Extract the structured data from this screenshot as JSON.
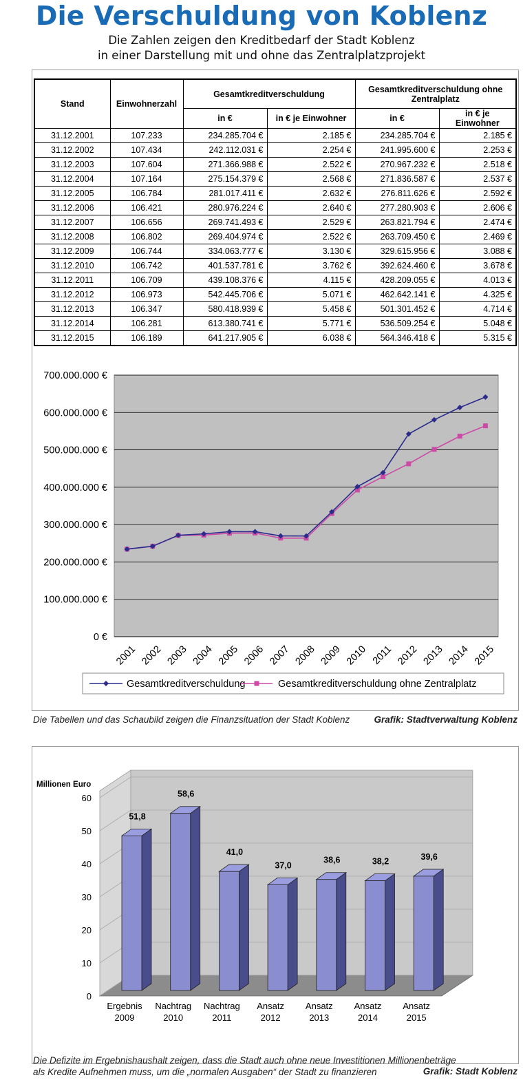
{
  "page": {
    "title": "Die Verschuldung von Koblenz",
    "subtitle_line1": "Die Zahlen zeigen den Kreditbedarf der Stadt Koblenz",
    "subtitle_line2": "in einer Darstellung mit und ohne das Zentralplatzprojekt"
  },
  "table": {
    "headers": {
      "stand": "Stand",
      "einwohner": "Einwohnerzahl",
      "gesamt": "Gesamtkreditverschuldung",
      "gesamt_ohne_line1": "Gesamtkreditverschuldung ohne",
      "gesamt_ohne_line2": "Zentralplatz",
      "in_eur": "in €",
      "in_eur_je": "in € je Einwohner"
    },
    "rows": [
      [
        "31.12.2001",
        "107.233",
        "234.285.704 €",
        "2.185 €",
        "234.285.704 €",
        "2.185 €"
      ],
      [
        "31.12.2002",
        "107.434",
        "242.112.031 €",
        "2.254 €",
        "241.995.600 €",
        "2.253 €"
      ],
      [
        "31.12.2003",
        "107.604",
        "271.366.988 €",
        "2.522 €",
        "270.967.232 €",
        "2.518 €"
      ],
      [
        "31.12.2004",
        "107.164",
        "275.154.379 €",
        "2.568 €",
        "271.836.587 €",
        "2.537 €"
      ],
      [
        "31.12.2005",
        "106.784",
        "281.017.411 €",
        "2.632 €",
        "276.811.626 €",
        "2.592 €"
      ],
      [
        "31.12.2006",
        "106.421",
        "280.976.224 €",
        "2.640 €",
        "277.280.903 €",
        "2.606 €"
      ],
      [
        "31.12.2007",
        "106.656",
        "269.741.493 €",
        "2.529 €",
        "263.821.794 €",
        "2.474 €"
      ],
      [
        "31.12.2008",
        "106.802",
        "269.404.974 €",
        "2.522 €",
        "263.709.450 €",
        "2.469 €"
      ],
      [
        "31.12.2009",
        "106.744",
        "334.063.777 €",
        "3.130 €",
        "329.615.956 €",
        "3.088 €"
      ],
      [
        "31.12.2010",
        "106.742",
        "401.537.781 €",
        "3.762 €",
        "392.624.460 €",
        "3.678 €"
      ],
      [
        "31.12.2011",
        "106.709",
        "439.108.376 €",
        "4.115 €",
        "428.209.055 €",
        "4.013 €"
      ],
      [
        "31.12.2012",
        "106.973",
        "542.445.706 €",
        "5.071 €",
        "462.642.141 €",
        "4.325 €"
      ],
      [
        "31.12.2013",
        "106.347",
        "580.418.939 €",
        "5.458 €",
        "501.301.452 €",
        "4.714 €"
      ],
      [
        "31.12.2014",
        "106.281",
        "613.380.741 €",
        "5.771 €",
        "536.509.254 €",
        "5.048 €"
      ],
      [
        "31.12.2015",
        "106.189",
        "641.217.905 €",
        "6.038 €",
        "564.346.418 €",
        "5.315 €"
      ]
    ]
  },
  "caption1": "Die Tabellen und das Schaubild zeigen die Finanzsituation der Stadt Koblenz",
  "credit1": "Grafik: Stadtverwaltung Koblenz",
  "caption2_line1": "Die Defizite im Ergebnishaushalt zeigen, dass die Stadt auch ohne neue Investitionen Millionenbeträge",
  "caption2_line2": "als Kredite Aufnehmen muss, um die „normalen Ausgaben“ der Stadt zu finanzieren",
  "credit2": "Grafik: Stadt Koblenz",
  "chart_data": [
    {
      "type": "line",
      "x": [
        "2001",
        "2002",
        "2003",
        "2004",
        "2005",
        "2006",
        "2007",
        "2008",
        "2009",
        "2010",
        "2011",
        "2012",
        "2013",
        "2014",
        "2015"
      ],
      "y_tick_labels": [
        "0 €",
        "100.000.000 €",
        "200.000.000 €",
        "300.000.000 €",
        "400.000.000 €",
        "500.000.000 €",
        "600.000.000 €",
        "700.000.000 €"
      ],
      "ylim": [
        0,
        700000000
      ],
      "grid": true,
      "legend_position": "bottom",
      "series": [
        {
          "name": "Gesamtkreditverschuldung",
          "color": "#2b2b8c",
          "marker": "diamond",
          "values": [
            234285704,
            242112031,
            271366988,
            275154379,
            281017411,
            280976224,
            269741493,
            269404974,
            334063777,
            401537781,
            439108376,
            542445706,
            580418939,
            613380741,
            641217905
          ]
        },
        {
          "name": "Gesamtkreditverschuldung ohne Zentralplatz",
          "color": "#cc4aa5",
          "marker": "square",
          "values": [
            234285704,
            241995600,
            270967232,
            271836587,
            276811626,
            277280903,
            263821794,
            263709450,
            329615956,
            392624460,
            428209055,
            462642141,
            501301452,
            536509254,
            564346418
          ]
        }
      ],
      "plot_background": "#c0c0c0"
    },
    {
      "type": "bar",
      "ylabel": "Millionen Euro",
      "categories": [
        [
          "Ergebnis",
          "2009"
        ],
        [
          "Nachtrag",
          "2010"
        ],
        [
          "Nachtrag",
          "2011"
        ],
        [
          "Ansatz",
          "2012"
        ],
        [
          "Ansatz",
          "2013"
        ],
        [
          "Ansatz",
          "2014"
        ],
        [
          "Ansatz",
          "2015"
        ]
      ],
      "values": [
        51.8,
        58.6,
        41.0,
        37.0,
        38.6,
        38.2,
        39.6
      ],
      "value_labels": [
        "51,8",
        "58,6",
        "41,0",
        "37,0",
        "38,6",
        "38,2",
        "39,6"
      ],
      "y_ticks": [
        "0",
        "10",
        "20",
        "30",
        "40",
        "50",
        "60"
      ],
      "ylim": [
        0,
        60
      ],
      "bar_color": "#8a8ed0"
    }
  ]
}
